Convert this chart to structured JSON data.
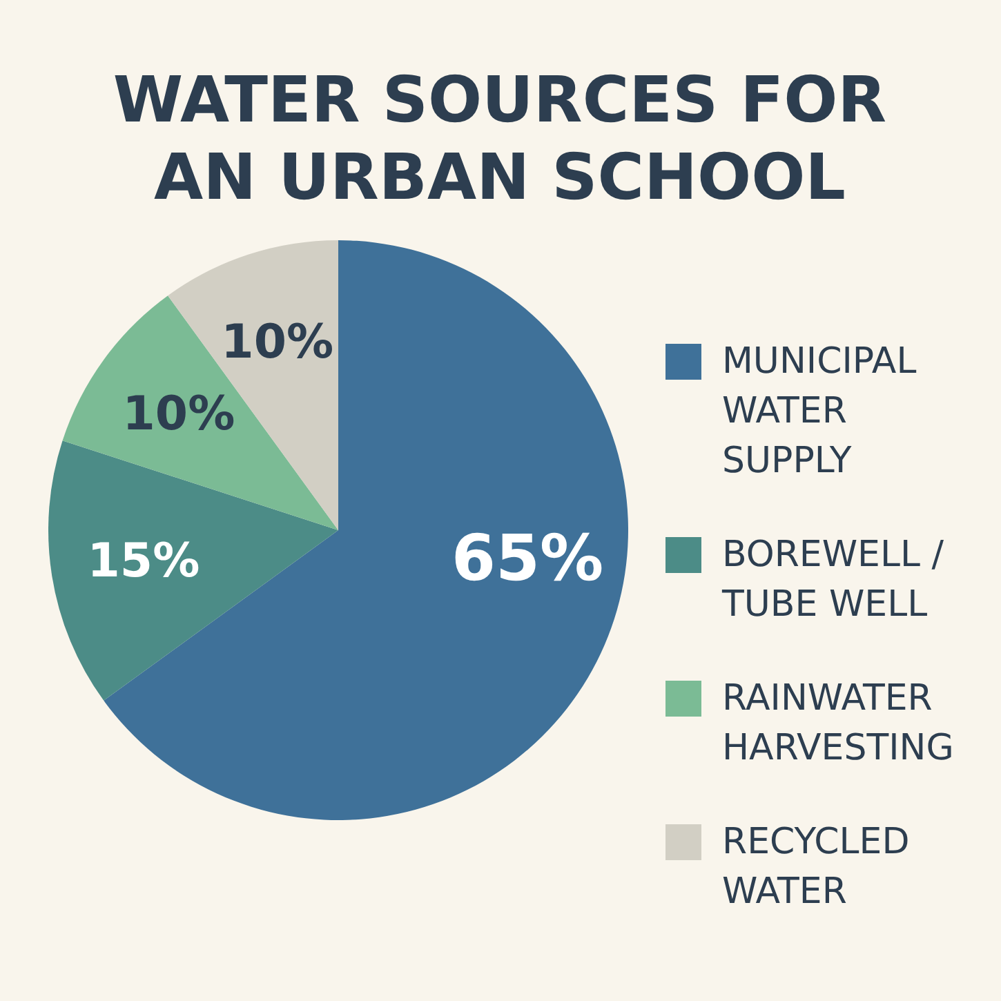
{
  "chart_data": {
    "type": "pie",
    "title": "WATER SOURCES FOR AN URBAN SCHOOL",
    "categories": [
      "MUNICIPAL WATER SUPPLY",
      "BOREWELL / TUBE WELL",
      "RAINWATER HARVESTING",
      "RECYCLED WATER"
    ],
    "values": [
      65,
      15,
      10,
      10
    ],
    "colors": [
      "#3f7199",
      "#4c8c87",
      "#7bbb95",
      "#d2cfc4"
    ],
    "value_labels": [
      "65%",
      "15%",
      "10%",
      "10%"
    ],
    "legend": "right"
  }
}
